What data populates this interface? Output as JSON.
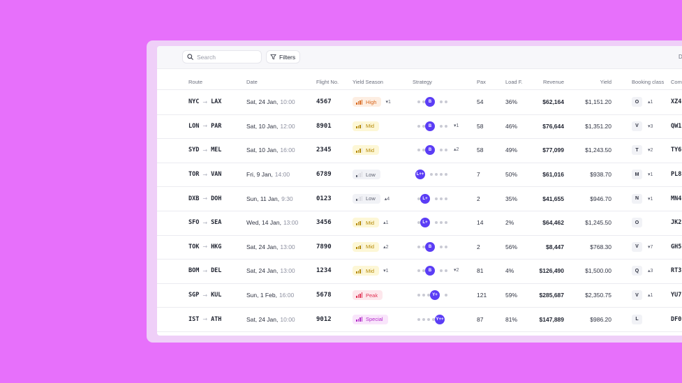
{
  "toolbar": {
    "search_placeholder": "Search",
    "filters_label": "Filters",
    "right_label": "D"
  },
  "columns": {
    "route": "Route",
    "date": "Date",
    "flight": "Flight No.",
    "season": "Yield Season",
    "strategy": "Strategy",
    "pax": "Pax",
    "load": "Load F.",
    "revenue": "Revenue",
    "yield": "Yield",
    "booking": "Booking class",
    "comp": "Com"
  },
  "colors": {
    "background": "#e770fb",
    "accent": "#5b3df5"
  },
  "rows": [
    {
      "from": "NYC",
      "to": "LAX",
      "date": "Sat, 24 Jan,",
      "time": "10:00",
      "flight": "4567",
      "season": "High",
      "season_level": 4,
      "season_delta": "▾1",
      "strategy": {
        "dots": 5,
        "pos": 2,
        "label": "B"
      },
      "strategy_delta": "",
      "pax": "54",
      "load": "36%",
      "revenue": "$62,164",
      "yield": "$1,151.20",
      "class": "O",
      "class_delta": "▴1",
      "comp": "XZ4"
    },
    {
      "from": "LON",
      "to": "PAR",
      "date": "Sat, 10 Jan,",
      "time": "12:00",
      "flight": "8901",
      "season": "Mid",
      "season_level": 3,
      "season_delta": "",
      "strategy": {
        "dots": 5,
        "pos": 2,
        "label": "B"
      },
      "strategy_delta": "▾1",
      "pax": "58",
      "load": "46%",
      "revenue": "$76,644",
      "yield": "$1,351.20",
      "class": "V",
      "class_delta": "▾3",
      "comp": "QW1"
    },
    {
      "from": "SYD",
      "to": "MEL",
      "date": "Sat, 10 Jan,",
      "time": "16:00",
      "flight": "2345",
      "season": "Mid",
      "season_level": 3,
      "season_delta": "",
      "strategy": {
        "dots": 5,
        "pos": 2,
        "label": "B"
      },
      "strategy_delta": "▴2",
      "pax": "58",
      "load": "49%",
      "revenue": "$77,099",
      "yield": "$1,243.50",
      "class": "T",
      "class_delta": "▾2",
      "comp": "TY6"
    },
    {
      "from": "TOR",
      "to": "VAN",
      "date": "Fri, 9 Jan,",
      "time": "14:00",
      "flight": "6789",
      "season": "Low",
      "season_level": 1,
      "season_delta": "",
      "strategy": {
        "dots": 5,
        "pos": 0,
        "label": "L++"
      },
      "strategy_delta": "",
      "pax": "7",
      "load": "50%",
      "revenue": "$61,016",
      "yield": "$938.70",
      "class": "M",
      "class_delta": "▾1",
      "comp": "PL8"
    },
    {
      "from": "DXB",
      "to": "DOH",
      "date": "Sun, 11 Jan,",
      "time": "9:30",
      "flight": "0123",
      "season": "Low",
      "season_level": 1,
      "season_delta": "▴4",
      "strategy": {
        "dots": 5,
        "pos": 1,
        "label": "L+"
      },
      "strategy_delta": "",
      "pax": "2",
      "load": "35%",
      "revenue": "$41,655",
      "yield": "$946.70",
      "class": "N",
      "class_delta": "▾1",
      "comp": "MN4"
    },
    {
      "from": "SFO",
      "to": "SEA",
      "date": "Wed, 14 Jan,",
      "time": "13:00",
      "flight": "3456",
      "season": "Mid",
      "season_level": 3,
      "season_delta": "▴1",
      "strategy": {
        "dots": 5,
        "pos": 1,
        "label": "L+"
      },
      "strategy_delta": "",
      "pax": "14",
      "load": "2%",
      "revenue": "$64,462",
      "yield": "$1,245.50",
      "class": "O",
      "class_delta": "",
      "comp": "JK2"
    },
    {
      "from": "TOK",
      "to": "HKG",
      "date": "Sat, 24 Jan,",
      "time": "13:00",
      "flight": "7890",
      "season": "Mid",
      "season_level": 3,
      "season_delta": "▴2",
      "strategy": {
        "dots": 5,
        "pos": 2,
        "label": "B"
      },
      "strategy_delta": "",
      "pax": "2",
      "load": "56%",
      "revenue": "$8,447",
      "yield": "$768.30",
      "class": "V",
      "class_delta": "▾7",
      "comp": "GH5"
    },
    {
      "from": "BOM",
      "to": "DEL",
      "date": "Sat, 24 Jan,",
      "time": "13:00",
      "flight": "1234",
      "season": "Mid",
      "season_level": 3,
      "season_delta": "▾1",
      "strategy": {
        "dots": 5,
        "pos": 2,
        "label": "B"
      },
      "strategy_delta": "▾2",
      "pax": "81",
      "load": "4%",
      "revenue": "$126,490",
      "yield": "$1,500.00",
      "class": "Q",
      "class_delta": "▴3",
      "comp": "RT3"
    },
    {
      "from": "SGP",
      "to": "KUL",
      "date": "Sun, 1 Feb,",
      "time": "16:00",
      "flight": "5678",
      "season": "Peak",
      "season_level": 4,
      "season_delta": "",
      "strategy": {
        "dots": 5,
        "pos": 3,
        "label": "Y+"
      },
      "strategy_delta": "",
      "pax": "121",
      "load": "59%",
      "revenue": "$285,687",
      "yield": "$2,350.75",
      "class": "V",
      "class_delta": "▴1",
      "comp": "YU7"
    },
    {
      "from": "IST",
      "to": "ATH",
      "date": "Sat, 24 Jan,",
      "time": "10:00",
      "flight": "9012",
      "season": "Special",
      "season_level": 4,
      "season_delta": "",
      "strategy": {
        "dots": 5,
        "pos": 4,
        "label": "Y++"
      },
      "strategy_delta": "",
      "pax": "87",
      "load": "81%",
      "revenue": "$147,889",
      "yield": "$986.20",
      "class": "L",
      "class_delta": "",
      "comp": "DF0"
    }
  ]
}
